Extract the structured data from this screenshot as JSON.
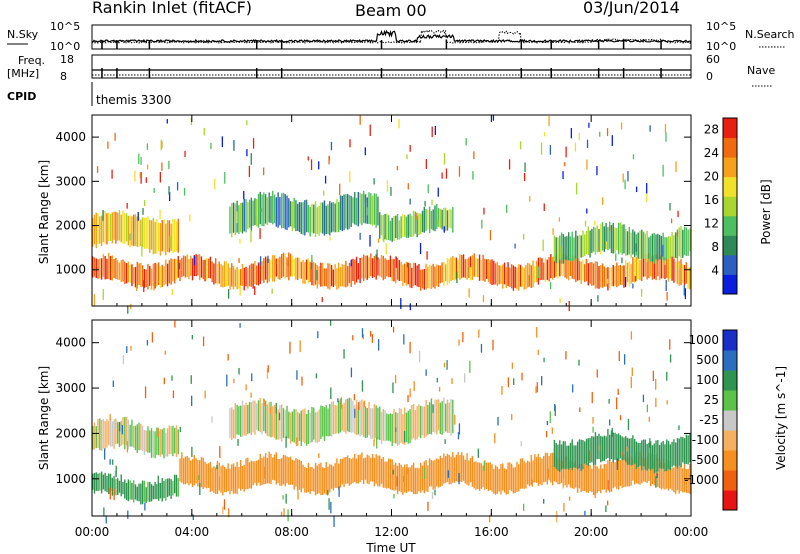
{
  "header": {
    "station": "Rankin Inlet (fitACF)",
    "beam": "Beam 00",
    "date": "03/Jun/2014"
  },
  "strip_panels": {
    "nsky": {
      "label": "N.Sky",
      "tick_top": "10^5",
      "tick_bottom": "10^0"
    },
    "nsearch": {
      "label": "N.Search",
      "tick_top": "10^5",
      "tick_bottom": "10^0"
    },
    "freq": {
      "label_line1": "Freq.",
      "label_line2": "[MHz]",
      "tick_top": "18",
      "tick_bottom": "8"
    },
    "nave": {
      "label": "Nave",
      "tick_top": "60",
      "tick_bottom": "0"
    },
    "cpid": {
      "label": "CPID",
      "mode": "themis 3300"
    }
  },
  "colors": {
    "power": [
      "#0a1ee0",
      "#2b5fc2",
      "#2e8b57",
      "#4dbf60",
      "#a8d830",
      "#f3e02a",
      "#f5a21a",
      "#f06a10",
      "#e82010"
    ],
    "velocity": [
      "#e81414",
      "#f06010",
      "#f59020",
      "#f7b060",
      "#c8c8c8",
      "#5bc24a",
      "#2e9450",
      "#2a6fbf",
      "#1830c8"
    ],
    "data_red": "#e82010",
    "data_orange": "#f5a21a",
    "data_yellow": "#f3e02a",
    "data_green": "#2e8b57",
    "data_blue": "#0a1ee0",
    "data_gray": "#c8c8c8"
  },
  "chart_data": [
    {
      "type": "heatmap",
      "quantity": "Power",
      "xlabel": "Time UT",
      "ylabel": "Slant Range [km]",
      "x_ticks": [
        "00:00",
        "04:00",
        "08:00",
        "12:00",
        "16:00",
        "20:00",
        "00:00"
      ],
      "y_ticks": [
        1000,
        2000,
        3000,
        4000
      ],
      "ylim": [
        180,
        4500
      ],
      "colorbar": {
        "label": "Power [dB]",
        "ticks": [
          4,
          8,
          12,
          16,
          20,
          24,
          28
        ],
        "range": [
          0,
          30
        ]
      },
      "bands": [
        {
          "t_start": 0.0,
          "t_end": 3.5,
          "range_low": 1500,
          "range_high": 2200,
          "value": 20
        },
        {
          "t_start": 0.0,
          "t_end": 24.0,
          "range_low": 700,
          "range_high": 1200,
          "value": 24
        },
        {
          "t_start": 5.5,
          "t_end": 11.5,
          "range_low": 1900,
          "range_high": 2600,
          "value": 10
        },
        {
          "t_start": 11.5,
          "t_end": 14.5,
          "range_low": 1800,
          "range_high": 2300,
          "value": 12
        },
        {
          "t_start": 18.5,
          "t_end": 24.0,
          "range_low": 1300,
          "range_high": 1900,
          "value": 12
        }
      ]
    },
    {
      "type": "heatmap",
      "quantity": "Velocity",
      "xlabel": "Time UT",
      "ylabel": "Slant Range [km]",
      "x_ticks": [
        "00:00",
        "04:00",
        "08:00",
        "12:00",
        "16:00",
        "20:00",
        "00:00"
      ],
      "y_ticks": [
        1000,
        2000,
        3000,
        4000
      ],
      "ylim": [
        180,
        4500
      ],
      "colorbar": {
        "label": "Velocity [m s^-1]",
        "ticks": [
          1000,
          500,
          100,
          25,
          -25,
          -100,
          -500,
          -1000
        ]
      },
      "bands": [
        {
          "t_start": 0.0,
          "t_end": 3.5,
          "range_low": 1600,
          "range_high": 2200,
          "value": 0
        },
        {
          "t_start": 0.0,
          "t_end": 3.5,
          "range_low": 600,
          "range_high": 1000,
          "value": 150
        },
        {
          "t_start": 3.5,
          "t_end": 24.0,
          "range_low": 800,
          "range_high": 1400,
          "value": -300
        },
        {
          "t_start": 5.5,
          "t_end": 14.5,
          "range_low": 1900,
          "range_high": 2600,
          "value": 0
        },
        {
          "t_start": 18.5,
          "t_end": 24.0,
          "range_low": 1300,
          "range_high": 1900,
          "value": 200
        }
      ]
    }
  ]
}
